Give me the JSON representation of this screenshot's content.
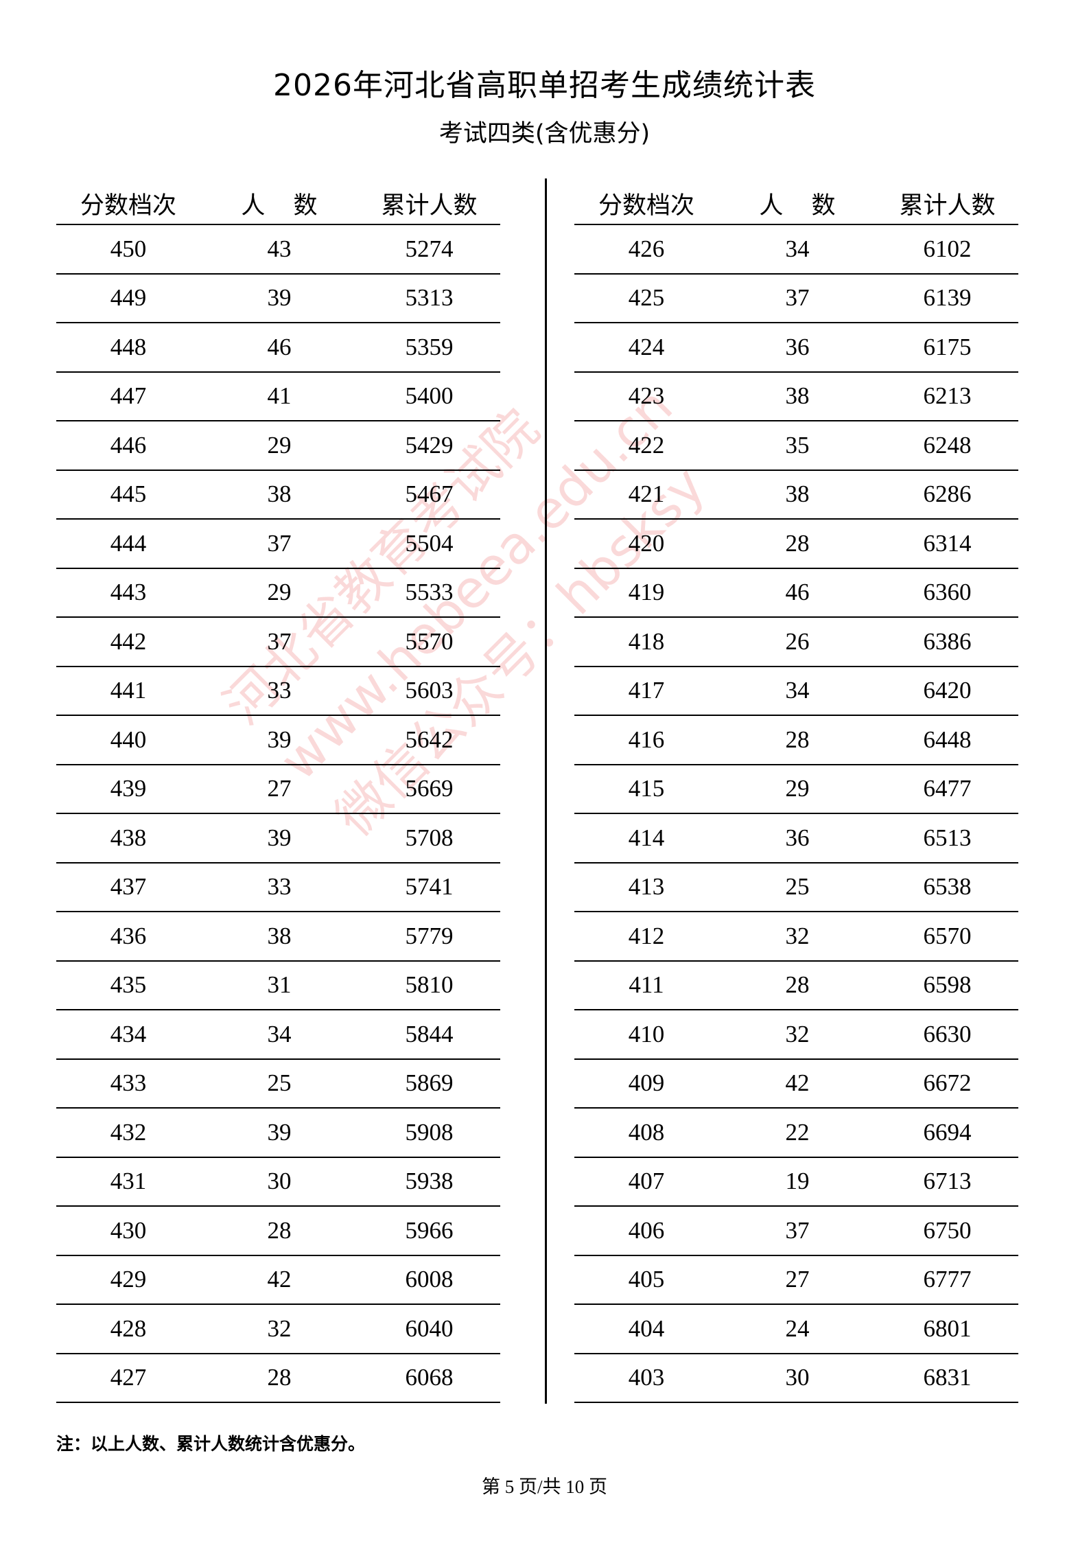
{
  "title": "2026年河北省高职单招考生成绩统计表",
  "subtitle": "考试四类(含优惠分)",
  "columns": [
    "分数档次",
    "人 数",
    "累计人数"
  ],
  "left_rows": [
    [
      450,
      43,
      5274
    ],
    [
      449,
      39,
      5313
    ],
    [
      448,
      46,
      5359
    ],
    [
      447,
      41,
      5400
    ],
    [
      446,
      29,
      5429
    ],
    [
      445,
      38,
      5467
    ],
    [
      444,
      37,
      5504
    ],
    [
      443,
      29,
      5533
    ],
    [
      442,
      37,
      5570
    ],
    [
      441,
      33,
      5603
    ],
    [
      440,
      39,
      5642
    ],
    [
      439,
      27,
      5669
    ],
    [
      438,
      39,
      5708
    ],
    [
      437,
      33,
      5741
    ],
    [
      436,
      38,
      5779
    ],
    [
      435,
      31,
      5810
    ],
    [
      434,
      34,
      5844
    ],
    [
      433,
      25,
      5869
    ],
    [
      432,
      39,
      5908
    ],
    [
      431,
      30,
      5938
    ],
    [
      430,
      28,
      5966
    ],
    [
      429,
      42,
      6008
    ],
    [
      428,
      32,
      6040
    ],
    [
      427,
      28,
      6068
    ]
  ],
  "right_rows": [
    [
      426,
      34,
      6102
    ],
    [
      425,
      37,
      6139
    ],
    [
      424,
      36,
      6175
    ],
    [
      423,
      38,
      6213
    ],
    [
      422,
      35,
      6248
    ],
    [
      421,
      38,
      6286
    ],
    [
      420,
      28,
      6314
    ],
    [
      419,
      46,
      6360
    ],
    [
      418,
      26,
      6386
    ],
    [
      417,
      34,
      6420
    ],
    [
      416,
      28,
      6448
    ],
    [
      415,
      29,
      6477
    ],
    [
      414,
      36,
      6513
    ],
    [
      413,
      25,
      6538
    ],
    [
      412,
      32,
      6570
    ],
    [
      411,
      28,
      6598
    ],
    [
      410,
      32,
      6630
    ],
    [
      409,
      42,
      6672
    ],
    [
      408,
      22,
      6694
    ],
    [
      407,
      19,
      6713
    ],
    [
      406,
      37,
      6750
    ],
    [
      405,
      27,
      6777
    ],
    [
      404,
      24,
      6801
    ],
    [
      403,
      30,
      6831
    ]
  ],
  "note": "注：以上人数、累计人数统计含优惠分。",
  "footer": "第 5 页/共 10 页",
  "watermark": [
    "河北省教育考试院",
    "www.hebeea.edu.cn",
    "微信公众号：hbsksy"
  ],
  "watermark_color": "#e65050"
}
